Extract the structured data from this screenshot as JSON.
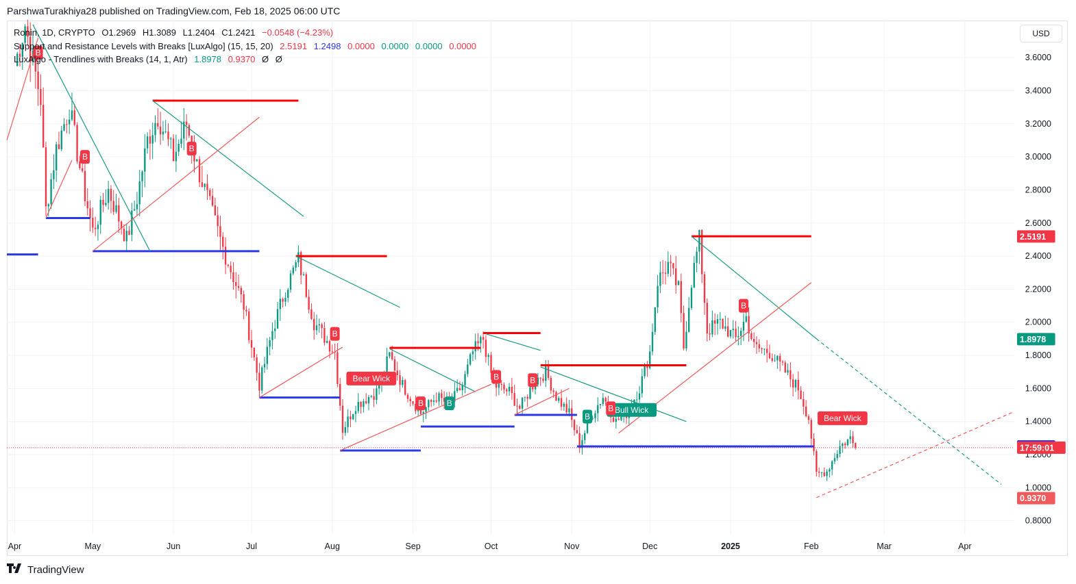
{
  "header": {
    "text": "ParshwaTurakhiya28 published on TradingView.com, Feb 18, 2025 06:00 UTC"
  },
  "footer": {
    "logo_text": "TradingView"
  },
  "currency_button": "USD",
  "legend": {
    "symbol_row": {
      "symbol": "Ronin, 1D, CRYPTO",
      "open": "O1.2969",
      "high": "H1.3089",
      "low": "L1.2404",
      "close": "C1.2421",
      "change": "−0.0548 (−4.23%)"
    },
    "sr_row": {
      "name": "Support and Resistance Levels with Breaks [LuxAlgo] (15, 15, 20)",
      "v1": "2.5191",
      "v2": "1.2498",
      "v3": "0.0000",
      "v4": "0.0000",
      "v5": "0.0000",
      "v6": "0.0000"
    },
    "tl_row": {
      "name": "LuxAlgo - Trendlines with Breaks (14, 1, Atr)",
      "v1": "1.8978",
      "v2": "0.9370",
      "v3": "Ø",
      "v4": "Ø"
    }
  },
  "colors": {
    "up": "#089981",
    "down": "#f23645",
    "resistance": "#ff0000",
    "support": "#2a39e8",
    "trend_down": "#1a9a86",
    "trend_up": "#f05a5a",
    "grid": "#f0f3fa"
  },
  "chart_data": {
    "type": "candlestick",
    "y_axis": {
      "range": [
        0.72,
        3.82
      ],
      "ticks": [
        0.8,
        1.0,
        1.2,
        1.4,
        1.6,
        1.8,
        2.0,
        2.2,
        2.4,
        2.6,
        2.8,
        3.0,
        3.2,
        3.4,
        3.6
      ]
    },
    "y_tick_labels": [
      "0.8000",
      "1.0000",
      "1.2000",
      "1.4000",
      "1.6000",
      "1.8000",
      "2.0000",
      "2.2000",
      "2.4000",
      "2.6000",
      "2.8000",
      "3.0000",
      "3.2000",
      "3.4000",
      "3.6000"
    ],
    "x_axis": {
      "range": [
        "2024-03-29",
        "2025-04-20"
      ],
      "labels": [
        {
          "date": "2024-04-01",
          "text": "Apr"
        },
        {
          "date": "2024-05-01",
          "text": "May"
        },
        {
          "date": "2024-06-01",
          "text": "Jun"
        },
        {
          "date": "2024-07-01",
          "text": "Jul"
        },
        {
          "date": "2024-08-01",
          "text": "Aug"
        },
        {
          "date": "2024-09-01",
          "text": "Sep"
        },
        {
          "date": "2024-10-01",
          "text": "Oct"
        },
        {
          "date": "2024-11-01",
          "text": "Nov"
        },
        {
          "date": "2024-12-01",
          "text": "Dec"
        },
        {
          "date": "2025-01-01",
          "text": "2025",
          "bold": true
        },
        {
          "date": "2025-02-01",
          "text": "Feb"
        },
        {
          "date": "2025-03-01",
          "text": "Mar"
        },
        {
          "date": "2025-04-01",
          "text": "Apr"
        }
      ]
    },
    "anchors": [
      {
        "date": "2024-04-01",
        "close": 3.55
      },
      {
        "date": "2024-04-05",
        "close": 3.8
      },
      {
        "date": "2024-04-11",
        "close": 3.35
      },
      {
        "date": "2024-04-13",
        "close": 2.68
      },
      {
        "date": "2024-04-17",
        "close": 3.05
      },
      {
        "date": "2024-04-22",
        "close": 3.3
      },
      {
        "date": "2024-04-27",
        "close": 2.85
      },
      {
        "date": "2024-05-01",
        "close": 2.55
      },
      {
        "date": "2024-05-07",
        "close": 2.8
      },
      {
        "date": "2024-05-14",
        "close": 2.5
      },
      {
        "date": "2024-05-18",
        "close": 2.75
      },
      {
        "date": "2024-05-22",
        "close": 3.1
      },
      {
        "date": "2024-05-26",
        "close": 3.25
      },
      {
        "date": "2024-06-01",
        "close": 3.0
      },
      {
        "date": "2024-06-06",
        "close": 3.2
      },
      {
        "date": "2024-06-10",
        "close": 2.95
      },
      {
        "date": "2024-06-14",
        "close": 2.75
      },
      {
        "date": "2024-06-20",
        "close": 2.45
      },
      {
        "date": "2024-06-28",
        "close": 2.1
      },
      {
        "date": "2024-07-04",
        "close": 1.62
      },
      {
        "date": "2024-07-09",
        "close": 1.95
      },
      {
        "date": "2024-07-14",
        "close": 2.2
      },
      {
        "date": "2024-07-19",
        "close": 2.38
      },
      {
        "date": "2024-07-25",
        "close": 2.0
      },
      {
        "date": "2024-08-02",
        "close": 1.82
      },
      {
        "date": "2024-08-05",
        "close": 1.35
      },
      {
        "date": "2024-08-10",
        "close": 1.5
      },
      {
        "date": "2024-08-18",
        "close": 1.58
      },
      {
        "date": "2024-08-23",
        "close": 1.8
      },
      {
        "date": "2024-08-28",
        "close": 1.62
      },
      {
        "date": "2024-09-04",
        "close": 1.45
      },
      {
        "date": "2024-09-10",
        "close": 1.55
      },
      {
        "date": "2024-09-15",
        "close": 1.5
      },
      {
        "date": "2024-09-20",
        "close": 1.62
      },
      {
        "date": "2024-09-24",
        "close": 1.82
      },
      {
        "date": "2024-09-28",
        "close": 1.9
      },
      {
        "date": "2024-10-02",
        "close": 1.62
      },
      {
        "date": "2024-10-08",
        "close": 1.58
      },
      {
        "date": "2024-10-12",
        "close": 1.48
      },
      {
        "date": "2024-10-18",
        "close": 1.65
      },
      {
        "date": "2024-10-22",
        "close": 1.7
      },
      {
        "date": "2024-10-26",
        "close": 1.55
      },
      {
        "date": "2024-10-31",
        "close": 1.45
      },
      {
        "date": "2024-11-04",
        "close": 1.26
      },
      {
        "date": "2024-11-09",
        "close": 1.45
      },
      {
        "date": "2024-11-13",
        "close": 1.55
      },
      {
        "date": "2024-11-18",
        "close": 1.4
      },
      {
        "date": "2024-11-22",
        "close": 1.45
      },
      {
        "date": "2024-11-27",
        "close": 1.6
      },
      {
        "date": "2024-12-01",
        "close": 1.82
      },
      {
        "date": "2024-12-04",
        "close": 2.25
      },
      {
        "date": "2024-12-08",
        "close": 2.35
      },
      {
        "date": "2024-12-12",
        "close": 2.2
      },
      {
        "date": "2024-12-14",
        "close": 1.85
      },
      {
        "date": "2024-12-17",
        "close": 2.25
      },
      {
        "date": "2024-12-20",
        "close": 2.5
      },
      {
        "date": "2024-12-23",
        "close": 1.95
      },
      {
        "date": "2024-12-28",
        "close": 2.0
      },
      {
        "date": "2025-01-03",
        "close": 1.9
      },
      {
        "date": "2025-01-07",
        "close": 2.03
      },
      {
        "date": "2025-01-10",
        "close": 1.85
      },
      {
        "date": "2025-01-16",
        "close": 1.82
      },
      {
        "date": "2025-01-22",
        "close": 1.7
      },
      {
        "date": "2025-01-27",
        "close": 1.6
      },
      {
        "date": "2025-01-31",
        "close": 1.42
      },
      {
        "date": "2025-02-03",
        "close": 1.08
      },
      {
        "date": "2025-02-07",
        "close": 1.1
      },
      {
        "date": "2025-02-12",
        "close": 1.25
      },
      {
        "date": "2025-02-16",
        "close": 1.3
      },
      {
        "date": "2025-02-18",
        "close": 1.2421
      }
    ],
    "resistance_lines": [
      {
        "from": "2024-05-24",
        "to": "2024-07-19",
        "y": 3.34
      },
      {
        "from": "2024-07-18",
        "to": "2024-08-22",
        "y": 2.4
      },
      {
        "from": "2024-08-23",
        "to": "2024-09-27",
        "y": 1.845
      },
      {
        "from": "2024-09-28",
        "to": "2024-10-20",
        "y": 1.935
      },
      {
        "from": "2024-10-20",
        "to": "2024-12-15",
        "y": 1.74
      },
      {
        "from": "2024-12-17",
        "to": "2025-02-01",
        "y": 2.52
      }
    ],
    "support_lines": [
      {
        "from": "2024-03-29",
        "to": "2024-04-10",
        "y": 2.41
      },
      {
        "from": "2024-04-13",
        "to": "2024-04-30",
        "y": 2.63
      },
      {
        "from": "2024-05-01",
        "to": "2024-07-04",
        "y": 2.43
      },
      {
        "from": "2024-07-04",
        "to": "2024-08-04",
        "y": 1.545
      },
      {
        "from": "2024-08-04",
        "to": "2024-09-04",
        "y": 1.225
      },
      {
        "from": "2024-09-04",
        "to": "2024-10-10",
        "y": 1.37
      },
      {
        "from": "2024-10-10",
        "to": "2024-11-03",
        "y": 1.44
      },
      {
        "from": "2024-11-03",
        "to": "2025-02-02",
        "y": 1.25
      }
    ],
    "trend_down_lines": [
      {
        "from": "2024-04-08",
        "y1": 3.8,
        "to": "2024-05-23",
        "y2": 2.43,
        "dashed": false
      },
      {
        "from": "2024-05-24",
        "y1": 3.34,
        "to": "2024-07-21",
        "y2": 2.64,
        "dashed": false
      },
      {
        "from": "2024-07-18",
        "y1": 2.4,
        "to": "2024-08-27",
        "y2": 2.09,
        "dashed": false
      },
      {
        "from": "2024-08-23",
        "y1": 1.84,
        "to": "2024-09-25",
        "y2": 1.58,
        "dashed": false
      },
      {
        "from": "2024-09-29",
        "y1": 1.93,
        "to": "2024-10-20",
        "y2": 1.83,
        "dashed": false
      },
      {
        "from": "2024-10-20",
        "y1": 1.73,
        "to": "2024-12-15",
        "y2": 1.4,
        "dashed": false
      },
      {
        "from": "2024-12-17",
        "y1": 2.52,
        "to": "2025-02-03",
        "y2": 1.9,
        "dashed": false
      },
      {
        "from": "2025-02-03",
        "y1": 1.9,
        "to": "2025-04-15",
        "y2": 1.02,
        "dashed": true
      }
    ],
    "trend_up_lines": [
      {
        "from": "2024-03-29",
        "y1": 3.1,
        "to": "2024-04-10",
        "y2": 3.72,
        "dashed": false
      },
      {
        "from": "2024-04-13",
        "y1": 2.63,
        "to": "2024-04-23",
        "y2": 2.98,
        "dashed": false
      },
      {
        "from": "2024-05-01",
        "y1": 2.43,
        "to": "2024-07-04",
        "y2": 3.24,
        "dashed": false
      },
      {
        "from": "2024-07-04",
        "y1": 1.545,
        "to": "2024-08-05",
        "y2": 1.85,
        "dashed": false
      },
      {
        "from": "2024-08-04",
        "y1": 1.225,
        "to": "2024-10-01",
        "y2": 1.625,
        "dashed": false
      },
      {
        "from": "2024-10-10",
        "y1": 1.44,
        "to": "2024-10-31",
        "y2": 1.6,
        "dashed": false
      },
      {
        "from": "2024-11-19",
        "y1": 1.33,
        "to": "2025-02-01",
        "y2": 2.24,
        "dashed": false
      },
      {
        "from": "2025-02-03",
        "y1": 0.94,
        "to": "2025-04-20",
        "y2": 1.46,
        "dashed": true
      }
    ],
    "markers": [
      {
        "date": "2024-04-10",
        "y": 3.63,
        "text": "B",
        "kind": "bear"
      },
      {
        "date": "2024-04-28",
        "y": 3.0,
        "text": "B",
        "kind": "bear"
      },
      {
        "date": "2024-06-08",
        "y": 3.05,
        "text": "B",
        "kind": "bear"
      },
      {
        "date": "2024-08-02",
        "y": 1.93,
        "text": "B",
        "kind": "bear"
      },
      {
        "date": "2024-08-16",
        "y": 1.66,
        "text": "Bear Wick",
        "kind": "bear"
      },
      {
        "date": "2024-09-04",
        "y": 1.51,
        "text": "B",
        "kind": "bear"
      },
      {
        "date": "2024-09-15",
        "y": 1.51,
        "text": "B",
        "kind": "bull"
      },
      {
        "date": "2024-10-03",
        "y": 1.67,
        "text": "B",
        "kind": "bear"
      },
      {
        "date": "2024-10-17",
        "y": 1.65,
        "text": "B",
        "kind": "bear"
      },
      {
        "date": "2024-11-07",
        "y": 1.43,
        "text": "B",
        "kind": "bull"
      },
      {
        "date": "2024-11-24",
        "y": 1.47,
        "text": "Bull Wick",
        "kind": "bull"
      },
      {
        "date": "2024-11-16",
        "y": 1.48,
        "text": "B",
        "kind": "bear"
      },
      {
        "date": "2025-01-06",
        "y": 2.1,
        "text": "B",
        "kind": "bear"
      },
      {
        "date": "2025-02-13",
        "y": 1.42,
        "text": "Bear Wick",
        "kind": "bear"
      }
    ],
    "price_tags": [
      {
        "y": 2.5191,
        "text": "2.5191",
        "color": "#f23645"
      },
      {
        "y": 1.8978,
        "text": "1.8978",
        "color": "#089981"
      },
      {
        "y": 1.2498,
        "text": "1.2498",
        "color": "#2a39e8"
      },
      {
        "y": 1.2421,
        "text": "17:59:01",
        "color": "#f23645"
      },
      {
        "y": 0.937,
        "text": "0.9370",
        "color": "#f05a5a"
      }
    ],
    "current_price": 1.2421
  }
}
